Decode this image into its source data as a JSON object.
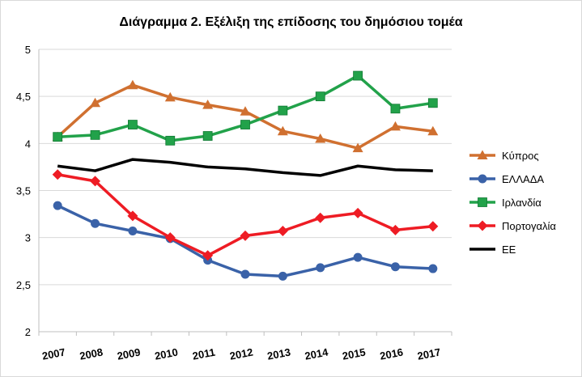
{
  "chart_data": {
    "type": "line",
    "title": "Διάγραμμα 2. Εξέλιξη της επίδοσης του δημόσιου τομέα",
    "xlabel": "",
    "ylabel": "",
    "x": [
      "2007",
      "2008",
      "2009",
      "2010",
      "2011",
      "2012",
      "2013",
      "2014",
      "2015",
      "2016",
      "2017"
    ],
    "ylim": [
      2,
      5
    ],
    "yticks": [
      "2",
      "2,5",
      "3",
      "3,5",
      "4",
      "4,5",
      "5"
    ],
    "ytick_values": [
      2,
      2.5,
      3,
      3.5,
      4,
      4.5,
      5
    ],
    "grid": "horizontal",
    "legend": "right",
    "series": [
      {
        "name": "Κύπρος",
        "color": "#d07030",
        "marker": "triangle",
        "values": [
          4.07,
          4.43,
          4.62,
          4.49,
          4.41,
          4.34,
          4.13,
          4.05,
          3.95,
          4.18,
          4.13
        ]
      },
      {
        "name": "ΕΛΛΑΔΑ",
        "color": "#3a62a8",
        "marker": "circle",
        "values": [
          3.34,
          3.15,
          3.07,
          2.99,
          2.76,
          2.61,
          2.59,
          2.68,
          2.79,
          2.69,
          2.67
        ]
      },
      {
        "name": "Ιρλανδία",
        "color": "#22a24a",
        "marker": "square",
        "values": [
          4.07,
          4.09,
          4.2,
          4.03,
          4.08,
          4.2,
          4.35,
          4.5,
          4.72,
          4.37,
          4.43
        ]
      },
      {
        "name": "Πορτογαλία",
        "color": "#ee1c24",
        "marker": "diamond",
        "values": [
          3.67,
          3.6,
          3.23,
          3.0,
          2.81,
          3.02,
          3.07,
          3.21,
          3.26,
          3.08,
          3.12
        ]
      },
      {
        "name": "ΕΕ",
        "color": "#000000",
        "marker": "none",
        "values": [
          3.76,
          3.71,
          3.83,
          3.8,
          3.75,
          3.73,
          3.69,
          3.66,
          3.76,
          3.72,
          3.71
        ]
      }
    ]
  }
}
